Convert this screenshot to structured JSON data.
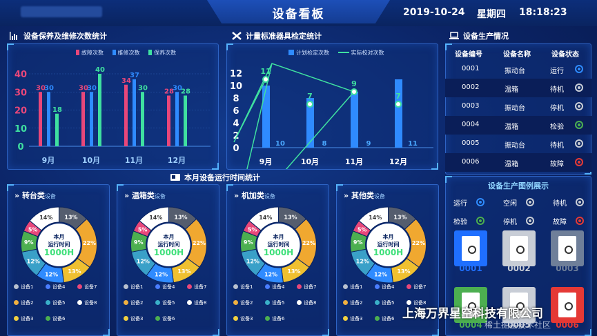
{
  "header": {
    "title": "设备看板",
    "date": "2019-10-24",
    "weekday": "星期四",
    "time": "18:18:23"
  },
  "maint": {
    "title": "设备保养及维修次数统计",
    "legend": [
      "故障次数",
      "维修次数",
      "保养次数"
    ],
    "colors": [
      "#e8477a",
      "#2f8bff",
      "#3fe0a0"
    ],
    "y_ticks": [
      "40",
      "30",
      "20",
      "10",
      "0"
    ]
  },
  "calib": {
    "title": "计量标准器具检定统计",
    "legend": [
      "计划检定次数",
      "实际校对次数"
    ],
    "y_ticks": [
      "12",
      "10",
      "8",
      "6",
      "4",
      "2",
      "0"
    ]
  },
  "production": {
    "title": "设备生产情况",
    "headers": [
      "设备编号",
      "设备名称",
      "设备状态"
    ],
    "rows": [
      {
        "id": "0001",
        "name": "振动台",
        "status": "运行",
        "color": "#2f8bff"
      },
      {
        "id": "0002",
        "name": "温箱",
        "status": "待机",
        "color": "#c8cdd6"
      },
      {
        "id": "0003",
        "name": "振动台",
        "status": "停机",
        "color": "#c8cdd6"
      },
      {
        "id": "0004",
        "name": "温箱",
        "status": "检验",
        "color": "#4caf50"
      },
      {
        "id": "0005",
        "name": "振动台",
        "status": "待机",
        "color": "#c8cdd6"
      },
      {
        "id": "0006",
        "name": "温箱",
        "status": "故障",
        "color": "#e53935"
      }
    ]
  },
  "legend_panel": {
    "title": "设备生产图例展示",
    "items": [
      {
        "label": "运行",
        "color": "#2f8bff"
      },
      {
        "label": "空闲",
        "color": "#c8cdd6"
      },
      {
        "label": "待机",
        "color": "#c8cdd6"
      },
      {
        "label": "检验",
        "color": "#4caf50"
      },
      {
        "label": "停机",
        "color": "#c8cdd6"
      },
      {
        "label": "故障",
        "color": "#e53935"
      }
    ],
    "devices": [
      {
        "label": "0001",
        "color": "#1f6fff"
      },
      {
        "label": "0002",
        "color": "#c8cdd6"
      },
      {
        "label": "0003",
        "color": "#6f7f99"
      },
      {
        "label": "0004",
        "color": "#4caf50"
      },
      {
        "label": "0005",
        "color": "#c8cdd6"
      },
      {
        "label": "0006",
        "color": "#e53935"
      }
    ]
  },
  "runtime": {
    "title": "本月设备运行时间统计",
    "panels": [
      {
        "name": "转台类",
        "suffix": "设备"
      },
      {
        "name": "温箱类",
        "suffix": "设备"
      },
      {
        "name": "机加类",
        "suffix": "设备"
      },
      {
        "name": "其他类",
        "suffix": "设备"
      }
    ],
    "center": [
      "本月",
      "运行时间",
      "1000H"
    ],
    "legend": [
      "设备1",
      "设备2",
      "设备3",
      "设备4",
      "设备5",
      "设备6",
      "设备7",
      "设备8"
    ]
  },
  "watermark": {
    "company": "上海万界星空科技有限公司",
    "site": "稀土掘金技术社区"
  },
  "chart_data": [
    {
      "type": "bar",
      "title": "设备保养及维修次数统计",
      "categories": [
        "9月",
        "10月",
        "11月",
        "12月"
      ],
      "ylim": [
        0,
        40
      ],
      "series": [
        {
          "name": "故障次数",
          "values": [
            30,
            30,
            34,
            28
          ]
        },
        {
          "name": "维修次数",
          "values": [
            30,
            30,
            37,
            30
          ]
        },
        {
          "name": "保养次数",
          "values": [
            18,
            40,
            30,
            28
          ]
        }
      ]
    },
    {
      "type": "bar",
      "title": "计量标准器具检定统计",
      "categories": [
        "9月",
        "10月",
        "11月",
        "12月"
      ],
      "ylim": [
        0,
        12
      ],
      "series": [
        {
          "name": "计划检定次数",
          "values": [
            10,
            8,
            9,
            11
          ]
        },
        {
          "name": "实际校对次数",
          "values": [
            11,
            7,
            9,
            7
          ]
        }
      ]
    },
    {
      "type": "pie",
      "title": "转台类",
      "labels": [
        "设备1",
        "设备2",
        "设备3",
        "设备4",
        "设备5",
        "设备6",
        "设备7",
        "设备8"
      ],
      "values": [
        13,
        22,
        13,
        12,
        12,
        9,
        5,
        14
      ]
    },
    {
      "type": "pie",
      "title": "温箱类",
      "labels": [
        "设备1",
        "设备2",
        "设备3",
        "设备4",
        "设备5",
        "设备6",
        "设备7",
        "设备8"
      ],
      "values": [
        13,
        22,
        13,
        12,
        12,
        9,
        5,
        14
      ]
    },
    {
      "type": "pie",
      "title": "机加类",
      "labels": [
        "设备1",
        "设备2",
        "设备3",
        "设备4",
        "设备5",
        "设备6",
        "设备7",
        "设备8"
      ],
      "values": [
        13,
        22,
        13,
        12,
        12,
        9,
        5,
        14
      ]
    },
    {
      "type": "pie",
      "title": "其他类",
      "labels": [
        "设备1",
        "设备2",
        "设备3",
        "设备4",
        "设备5",
        "设备6",
        "设备7",
        "设备8"
      ],
      "values": [
        13,
        22,
        13,
        12,
        12,
        9,
        5,
        14
      ]
    }
  ]
}
